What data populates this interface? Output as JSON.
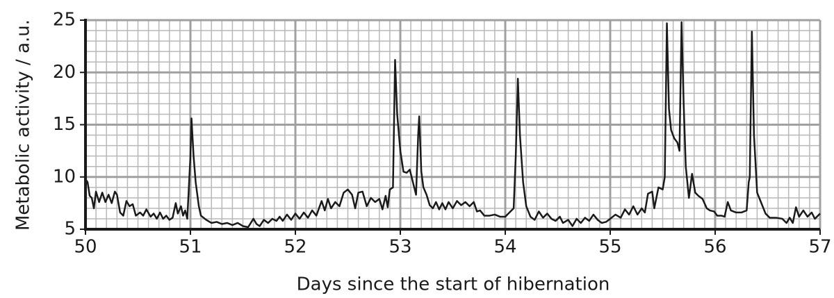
{
  "chart_data": {
    "type": "line",
    "xlabel": "Days since the start of hibernation",
    "ylabel": "Metabolic activity / a.u.",
    "xlim": [
      50,
      57
    ],
    "ylim": [
      5,
      25
    ],
    "xticks": [
      50,
      51,
      52,
      53,
      54,
      55,
      56,
      57
    ],
    "yticks": [
      5,
      10,
      15,
      20,
      25
    ],
    "xminorticks": [
      50.1,
      50.2,
      50.3,
      50.4,
      50.5,
      50.6,
      50.7,
      50.8,
      50.9,
      51.1,
      51.2,
      51.3,
      51.4,
      51.5,
      51.6,
      51.7,
      51.8,
      51.9,
      52.1,
      52.2,
      52.3,
      52.4,
      52.5,
      52.6,
      52.7,
      52.8,
      52.9,
      53.1,
      53.2,
      53.3,
      53.4,
      53.5,
      53.6,
      53.7,
      53.8,
      53.9,
      54.1,
      54.2,
      54.3,
      54.4,
      54.5,
      54.6,
      54.7,
      54.8,
      54.9,
      55.1,
      55.2,
      55.3,
      55.4,
      55.5,
      55.6,
      55.7,
      55.8,
      55.9,
      56.1,
      56.2,
      56.3,
      56.4,
      56.5,
      56.6,
      56.7,
      56.8,
      56.9
    ],
    "yminorticks": [
      6,
      7,
      8,
      9,
      11,
      12,
      13,
      14,
      16,
      17,
      18,
      19,
      21,
      22,
      23,
      24
    ],
    "grid": true,
    "color": "#1a1a1a",
    "x": [
      50.0,
      50.02,
      50.04,
      50.06,
      50.08,
      50.1,
      50.13,
      50.16,
      50.19,
      50.22,
      50.25,
      50.28,
      50.3,
      50.33,
      50.36,
      50.39,
      50.42,
      50.45,
      50.48,
      50.52,
      50.55,
      50.58,
      50.62,
      50.65,
      50.68,
      50.71,
      50.74,
      50.77,
      50.8,
      50.83,
      50.86,
      50.88,
      50.91,
      50.93,
      50.95,
      50.97,
      51.0,
      51.01,
      51.03,
      51.05,
      51.08,
      51.1,
      51.15,
      51.2,
      51.25,
      51.3,
      51.35,
      51.4,
      51.45,
      51.5,
      51.55,
      51.6,
      51.63,
      51.66,
      51.7,
      51.74,
      51.78,
      51.82,
      51.85,
      51.88,
      51.92,
      51.96,
      52.0,
      52.04,
      52.08,
      52.12,
      52.16,
      52.2,
      52.25,
      52.28,
      52.31,
      52.34,
      52.38,
      52.42,
      52.46,
      52.5,
      52.54,
      52.57,
      52.6,
      52.64,
      52.68,
      52.72,
      52.76,
      52.8,
      52.83,
      52.86,
      52.88,
      52.9,
      52.93,
      52.95,
      52.97,
      53.0,
      53.03,
      53.06,
      53.09,
      53.12,
      53.15,
      53.17,
      53.18,
      53.2,
      53.22,
      53.25,
      53.28,
      53.31,
      53.34,
      53.37,
      53.4,
      53.43,
      53.46,
      53.5,
      53.54,
      53.58,
      53.62,
      53.66,
      53.7,
      53.73,
      53.76,
      53.8,
      53.85,
      53.9,
      53.95,
      54.0,
      54.04,
      54.08,
      54.1,
      54.12,
      54.14,
      54.17,
      54.2,
      54.24,
      54.28,
      54.32,
      54.36,
      54.4,
      54.44,
      54.48,
      54.52,
      54.55,
      54.6,
      54.64,
      54.68,
      54.72,
      54.76,
      54.8,
      54.84,
      54.88,
      54.92,
      54.96,
      55.0,
      55.05,
      55.1,
      55.14,
      55.18,
      55.22,
      55.26,
      55.3,
      55.33,
      55.36,
      55.4,
      55.42,
      55.46,
      55.5,
      55.52,
      55.54,
      55.56,
      55.58,
      55.61,
      55.64,
      55.66,
      55.68,
      55.7,
      55.72,
      55.75,
      55.78,
      55.81,
      55.84,
      55.88,
      55.92,
      55.95,
      55.99,
      56.02,
      56.06,
      56.09,
      56.12,
      56.15,
      56.2,
      56.25,
      56.3,
      56.32,
      56.33,
      56.35,
      56.37,
      56.4,
      56.44,
      56.48,
      56.52,
      56.58,
      56.64,
      56.68,
      56.71,
      56.74,
      56.77,
      56.8,
      56.84,
      56.88,
      56.92,
      56.95,
      57.0
    ],
    "values": [
      9.8,
      9.5,
      8.2,
      8.0,
      7.0,
      8.6,
      7.6,
      8.5,
      7.6,
      8.3,
      7.5,
      8.6,
      8.3,
      6.6,
      6.3,
      7.7,
      7.2,
      7.4,
      6.3,
      6.6,
      6.3,
      6.9,
      6.2,
      6.5,
      6.0,
      6.6,
      6.0,
      6.3,
      5.9,
      6.1,
      7.5,
      6.5,
      7.2,
      6.3,
      6.8,
      6.0,
      12.0,
      15.6,
      12.0,
      9.5,
      7.2,
      6.3,
      5.9,
      5.6,
      5.7,
      5.5,
      5.6,
      5.4,
      5.6,
      5.3,
      5.2,
      6.0,
      5.5,
      5.3,
      5.9,
      5.6,
      6.0,
      5.8,
      6.2,
      5.8,
      6.4,
      5.9,
      6.5,
      6.0,
      6.6,
      6.1,
      6.8,
      6.3,
      7.7,
      6.8,
      7.9,
      7.0,
      7.6,
      7.2,
      8.5,
      8.8,
      8.3,
      7.0,
      8.5,
      8.6,
      7.2,
      8.0,
      7.6,
      7.9,
      6.9,
      8.2,
      7.1,
      8.8,
      9.0,
      21.2,
      16.0,
      12.5,
      10.5,
      10.4,
      10.7,
      9.5,
      8.3,
      14.0,
      15.8,
      10.5,
      9.0,
      8.3,
      7.3,
      7.0,
      7.6,
      6.9,
      7.5,
      6.9,
      7.6,
      7.0,
      7.7,
      7.3,
      7.6,
      7.2,
      7.6,
      6.7,
      6.8,
      6.3,
      6.3,
      6.4,
      6.2,
      6.2,
      6.6,
      7.0,
      12.0,
      19.4,
      14.0,
      9.5,
      7.2,
      6.2,
      5.9,
      6.7,
      6.1,
      6.5,
      6.0,
      5.8,
      6.2,
      5.6,
      5.9,
      5.3,
      6.0,
      5.6,
      6.1,
      5.8,
      6.4,
      5.9,
      5.6,
      5.7,
      6.0,
      6.4,
      6.1,
      6.9,
      6.4,
      7.2,
      6.4,
      7.0,
      6.6,
      8.4,
      8.6,
      7.0,
      9.0,
      8.8,
      10.0,
      24.7,
      16.5,
      14.5,
      13.7,
      13.3,
      12.5,
      24.8,
      17.0,
      11.0,
      8.0,
      10.3,
      8.5,
      8.2,
      7.9,
      7.0,
      6.8,
      6.7,
      6.3,
      6.3,
      6.2,
      7.6,
      6.8,
      6.6,
      6.6,
      6.8,
      9.5,
      10.0,
      23.9,
      14.0,
      8.5,
      7.5,
      6.5,
      6.1,
      6.1,
      6.0,
      5.6,
      6.1,
      5.6,
      7.1,
      6.2,
      6.8,
      6.2,
      6.6,
      6.0,
      6.5
    ]
  }
}
